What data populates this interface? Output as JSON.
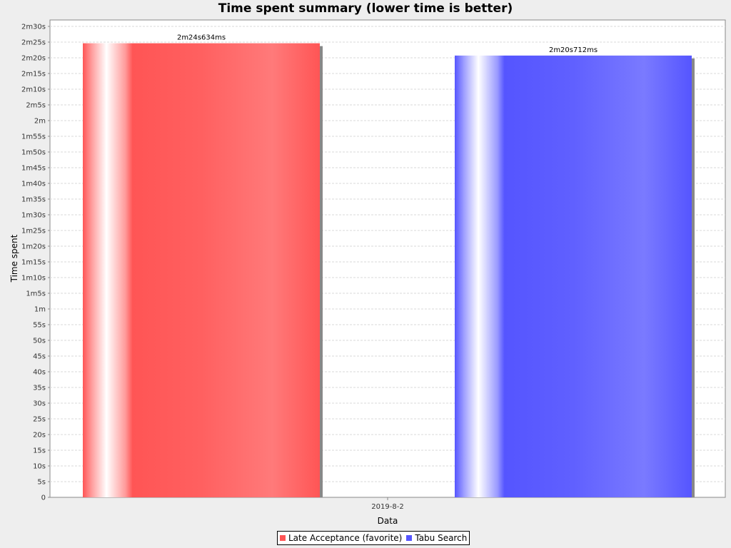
{
  "chart_data": {
    "type": "bar",
    "title": "Time spent summary (lower time is better)",
    "xlabel": "Data",
    "ylabel": "Time spent",
    "categories": [
      "2019-8-2"
    ],
    "series": [
      {
        "name": "Late Acceptance (favorite)",
        "values": [
          144634
        ],
        "value_label": "2m24s634ms",
        "color": "#ff5555"
      },
      {
        "name": "Tabu Search",
        "values": [
          140712
        ],
        "value_label": "2m20s712ms",
        "color": "#5555ff"
      }
    ],
    "ylim": [
      0,
      150000
    ],
    "y_unit": "ms",
    "y_ticks": [
      {
        "value": 0,
        "label": "0"
      },
      {
        "value": 5000,
        "label": "5s"
      },
      {
        "value": 10000,
        "label": "10s"
      },
      {
        "value": 15000,
        "label": "15s"
      },
      {
        "value": 20000,
        "label": "20s"
      },
      {
        "value": 25000,
        "label": "25s"
      },
      {
        "value": 30000,
        "label": "30s"
      },
      {
        "value": 35000,
        "label": "35s"
      },
      {
        "value": 40000,
        "label": "40s"
      },
      {
        "value": 45000,
        "label": "45s"
      },
      {
        "value": 50000,
        "label": "50s"
      },
      {
        "value": 55000,
        "label": "55s"
      },
      {
        "value": 60000,
        "label": "1m"
      },
      {
        "value": 65000,
        "label": "1m5s"
      },
      {
        "value": 70000,
        "label": "1m10s"
      },
      {
        "value": 75000,
        "label": "1m15s"
      },
      {
        "value": 80000,
        "label": "1m20s"
      },
      {
        "value": 85000,
        "label": "1m25s"
      },
      {
        "value": 90000,
        "label": "1m30s"
      },
      {
        "value": 95000,
        "label": "1m35s"
      },
      {
        "value": 100000,
        "label": "1m40s"
      },
      {
        "value": 105000,
        "label": "1m45s"
      },
      {
        "value": 110000,
        "label": "1m50s"
      },
      {
        "value": 115000,
        "label": "1m55s"
      },
      {
        "value": 120000,
        "label": "2m"
      },
      {
        "value": 125000,
        "label": "2m5s"
      },
      {
        "value": 130000,
        "label": "2m10s"
      },
      {
        "value": 135000,
        "label": "2m15s"
      },
      {
        "value": 140000,
        "label": "2m20s"
      },
      {
        "value": 145000,
        "label": "2m25s"
      },
      {
        "value": 150000,
        "label": "2m30s"
      }
    ],
    "grid": true,
    "legend_position": "bottom"
  }
}
